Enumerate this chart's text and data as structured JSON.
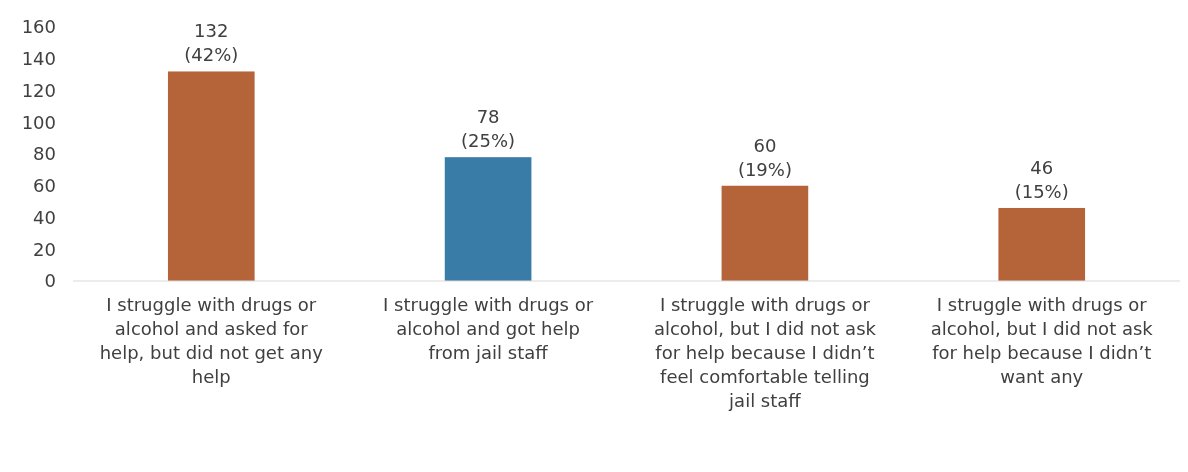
{
  "chart_data": {
    "type": "bar",
    "categories": [
      "I struggle with drugs or alcohol and asked for help, but did not get any help",
      "I struggle with drugs or alcohol and got help from jail staff",
      "I struggle with drugs or alcohol, but I did not ask for help because I didn’t feel comfortable telling jail staff",
      "I struggle with drugs or alcohol, but I did not ask for help because I didn’t want any"
    ],
    "values": [
      132,
      78,
      60,
      46
    ],
    "colors": [
      "#b5643a",
      "#3a7ca8",
      "#b5643a",
      "#b5643a"
    ],
    "value_labels": [
      "132 (42%)",
      "78 (25%)",
      "60 (19%)",
      "46 (15%)"
    ],
    "ylim": [
      0,
      160
    ],
    "yticks": [
      0,
      20,
      40,
      60,
      80,
      100,
      120,
      140,
      160
    ],
    "grid": false
  }
}
